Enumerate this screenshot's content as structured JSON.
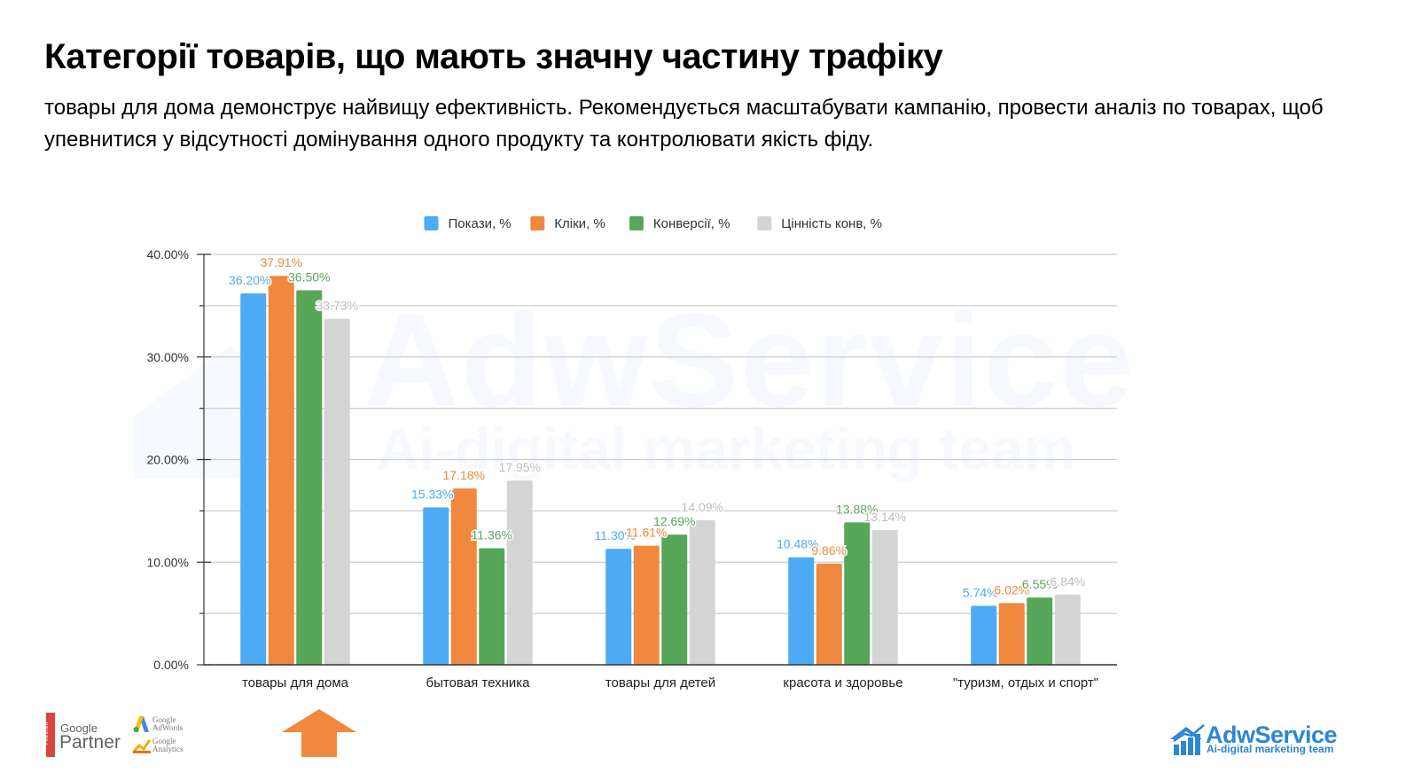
{
  "title": "Категорії товарів, що мають значну частину трафіку",
  "subtitle": "товары для дома демонструє найвищу ефективність. Рекомендується масштабувати кампанію, провести аналіз по товарах, щоб упевнитися у відсутності домінування одного продукту та контролювати якість фіду.",
  "watermark": {
    "main": "AdwService",
    "sub": "Ai-digital marketing team"
  },
  "footer": {
    "google": "Google",
    "partner": "Partner",
    "premier": "PREMIER",
    "adwords": [
      "Google",
      "AdWords"
    ],
    "analytics": [
      "Google",
      "Analytics"
    ],
    "brand_name": "AdwService",
    "brand_tagline": "Ai-digital marketing team",
    "arrow_category": "товары для дома"
  },
  "chart_data": {
    "type": "bar",
    "title": "",
    "xlabel": "",
    "ylabel": "",
    "ylim": [
      0,
      40
    ],
    "yticks": [
      0,
      10,
      20,
      30,
      40
    ],
    "ytick_labels": [
      "0.00%",
      "10.00%",
      "20.00%",
      "30.00%",
      "40.00%"
    ],
    "grid": true,
    "legend_position": "top",
    "categories": [
      "товары для дома",
      "бытовая техника",
      "товары для детей",
      "красота и здоровье",
      "\"туризм, отдых и спорт\""
    ],
    "series": [
      {
        "name": "Покази, %",
        "color": "#4daaf5",
        "values": [
          36.2,
          15.33,
          11.3,
          10.48,
          5.74
        ],
        "labels": [
          "36.20%",
          "15.33%",
          "11.30%",
          "10.48%",
          "5.74%"
        ]
      },
      {
        "name": "Кліки, %",
        "color": "#f0883e",
        "values": [
          37.91,
          17.18,
          11.61,
          9.86,
          6.02
        ],
        "labels": [
          "37.91%",
          "17.18%",
          "11.61%",
          "9.86%",
          "6.02%"
        ]
      },
      {
        "name": "Конверсії, %",
        "color": "#57a75b",
        "values": [
          36.5,
          11.36,
          12.69,
          13.88,
          6.55
        ],
        "labels": [
          "36.50%",
          "11.36%",
          "12.69%",
          "13.88%",
          "6.55%"
        ]
      },
      {
        "name": "Цінність конв, %",
        "color": "#d4d4d4",
        "label_color": "#bdbdbd",
        "values": [
          33.73,
          17.95,
          14.09,
          13.14,
          6.84
        ],
        "labels": [
          "33.73%",
          "17.95%",
          "14.09%",
          "13.14%",
          "6.84%"
        ]
      }
    ]
  }
}
